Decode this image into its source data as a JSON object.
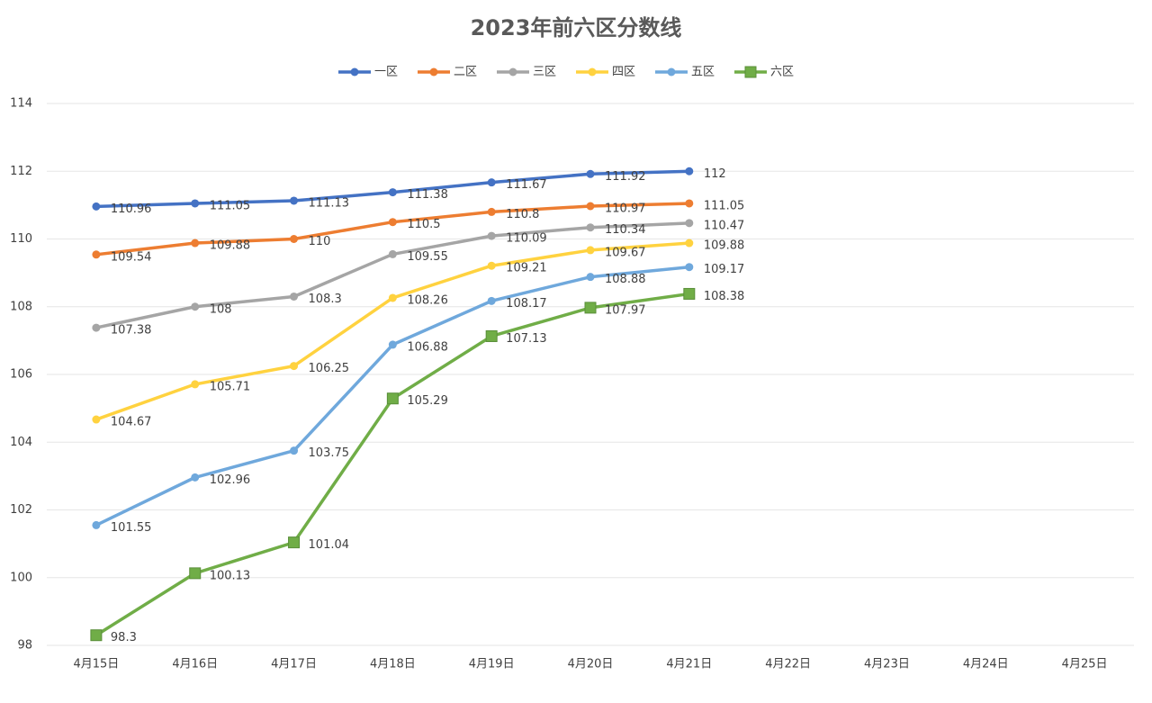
{
  "chart_data": {
    "type": "line",
    "title": "2023年前六区分数线",
    "categories": [
      "4月15日",
      "4月16日",
      "4月17日",
      "4月18日",
      "4月19日",
      "4月20日",
      "4月21日",
      "4月22日",
      "4月23日",
      "4月24日",
      "4月25日"
    ],
    "series": [
      {
        "name": "一区",
        "color": "#4472c4",
        "marker": "circle",
        "values": [
          110.96,
          111.05,
          111.13,
          111.38,
          111.67,
          111.92,
          112,
          null,
          null,
          null,
          null
        ]
      },
      {
        "name": "二区",
        "color": "#ed7d31",
        "marker": "circle",
        "values": [
          109.54,
          109.88,
          110,
          110.5,
          110.8,
          110.97,
          111.05,
          null,
          null,
          null,
          null
        ]
      },
      {
        "name": "三区",
        "color": "#a5a5a5",
        "marker": "circle",
        "values": [
          107.38,
          108,
          108.3,
          109.55,
          110.09,
          110.34,
          110.47,
          null,
          null,
          null,
          null
        ]
      },
      {
        "name": "四区",
        "color": "#ffd23f",
        "marker": "circle",
        "values": [
          104.67,
          105.71,
          106.25,
          108.26,
          109.21,
          109.67,
          109.88,
          null,
          null,
          null,
          null
        ]
      },
      {
        "name": "五区",
        "color": "#6fa8dc",
        "marker": "circle",
        "values": [
          101.55,
          102.96,
          103.75,
          106.88,
          108.17,
          108.88,
          109.17,
          null,
          null,
          null,
          null
        ]
      },
      {
        "name": "六区",
        "color": "#70ad47",
        "marker": "square",
        "values": [
          98.3,
          100.13,
          101.04,
          105.29,
          107.13,
          107.97,
          108.38,
          null,
          null,
          null,
          null
        ]
      }
    ],
    "ylim": [
      98,
      114
    ],
    "yticks": [
      98,
      100,
      102,
      104,
      106,
      108,
      110,
      112,
      114
    ],
    "grid": true,
    "legend": "top"
  }
}
